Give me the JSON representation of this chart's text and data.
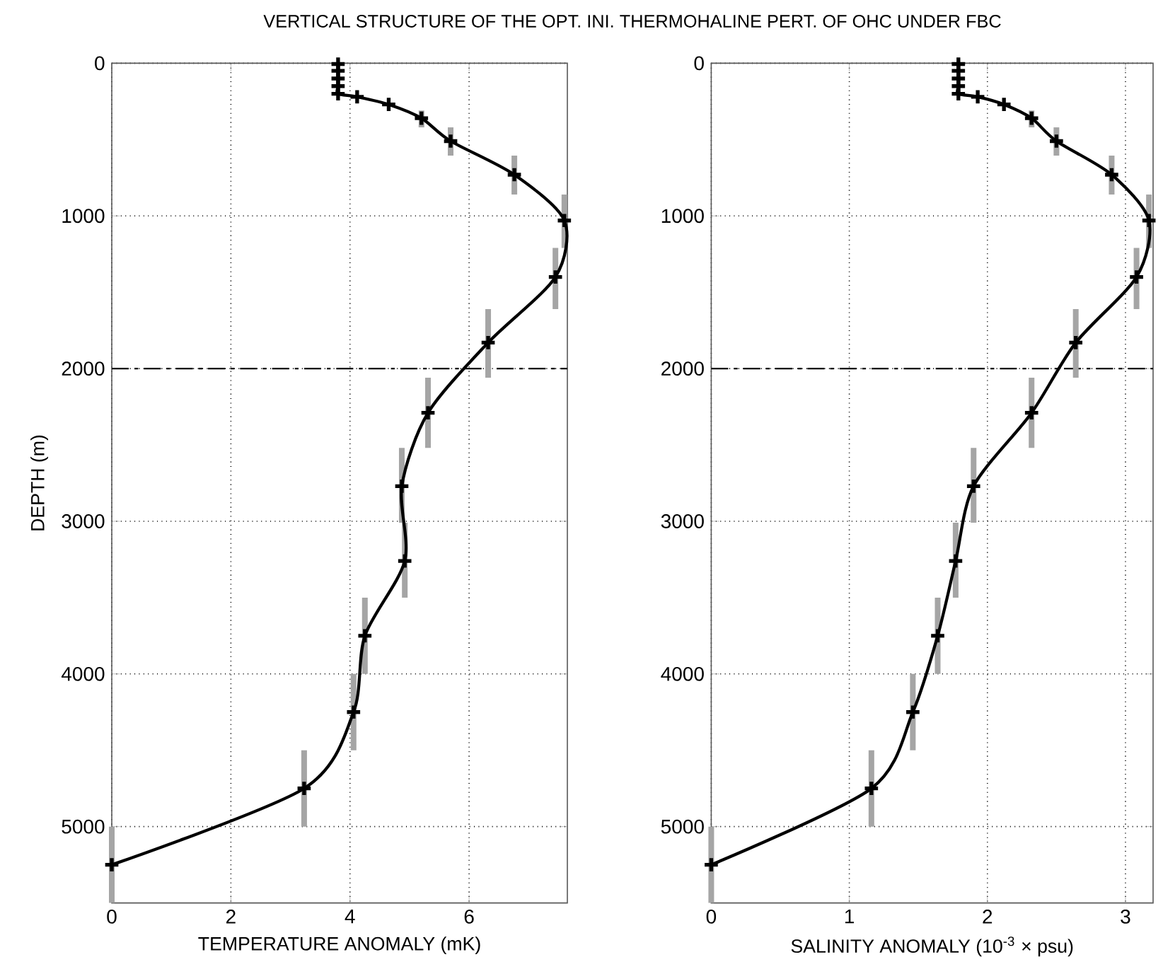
{
  "chart_data": [
    {
      "type": "line",
      "title": "VERTICAL STRUCTURE OF THE OPT. INI. THERMOHALINE PERT. OF OHC UNDER FBC",
      "xlabel": "TEMPERATURE ANOMALY (mK)",
      "ylabel": "DEPTH (m)",
      "xlim": [
        0,
        7.65
      ],
      "xticks": [
        0,
        2,
        4,
        6
      ],
      "ylim": [
        5500,
        0
      ],
      "yticks": [
        0,
        1000,
        2000,
        3000,
        4000,
        5000
      ],
      "grid": true,
      "marker": "cross",
      "line_style": "solid",
      "ref_lines": [
        {
          "axis": "y",
          "value": 2000,
          "line_style": "dashed",
          "color": "#000000"
        }
      ],
      "series": [
        {
          "color": "#000000",
          "x": [
            3.8,
            3.8,
            3.8,
            3.8,
            3.8,
            4.12,
            4.65,
            5.2,
            5.69,
            6.76,
            7.6,
            7.45,
            6.32,
            5.31,
            4.87,
            4.92,
            4.25,
            4.06,
            3.23,
            0
          ],
          "values": [
            5,
            50,
            100,
            150,
            200,
            220,
            270,
            360,
            510,
            730,
            1030,
            1400,
            1830,
            2290,
            2770,
            3260,
            3750,
            4250,
            4750,
            5250
          ],
          "errors": [
            null,
            null,
            null,
            null,
            null,
            null,
            null,
            [
              310,
              420
            ],
            [
              420,
              605
            ],
            [
              605,
              860
            ],
            [
              860,
              1210
            ],
            [
              1210,
              1610
            ],
            [
              1610,
              2060
            ],
            [
              2060,
              2520
            ],
            [
              2520,
              3010
            ],
            [
              3010,
              3500
            ],
            [
              3500,
              4000
            ],
            [
              4000,
              4500
            ],
            [
              4500,
              5000
            ],
            [
              5000,
              5500
            ]
          ]
        }
      ]
    },
    {
      "type": "line",
      "xlabel": "SALINITY ANOMALY (10$^{-3}$ × psu)",
      "xlim": [
        0,
        3.2
      ],
      "xticks": [
        0,
        1,
        2,
        3
      ],
      "ylim": [
        5500,
        0
      ],
      "yticks": [
        0,
        1000,
        2000,
        3000,
        4000,
        5000
      ],
      "grid": true,
      "marker": "cross",
      "line_style": "solid",
      "ref_lines": [
        {
          "axis": "y",
          "value": 2000,
          "line_style": "dashed",
          "color": "#000000"
        }
      ],
      "series": [
        {
          "color": "#000000",
          "x": [
            1.79,
            1.79,
            1.79,
            1.79,
            1.79,
            1.93,
            2.12,
            2.32,
            2.5,
            2.9,
            3.17,
            3.08,
            2.64,
            2.32,
            1.9,
            1.77,
            1.64,
            1.46,
            1.16,
            0
          ],
          "values": [
            5,
            50,
            100,
            150,
            200,
            220,
            270,
            360,
            510,
            730,
            1030,
            1400,
            1830,
            2290,
            2770,
            3260,
            3750,
            4250,
            4750,
            5250
          ],
          "errors": [
            null,
            null,
            null,
            null,
            null,
            null,
            null,
            [
              310,
              420
            ],
            [
              420,
              605
            ],
            [
              605,
              860
            ],
            [
              860,
              1210
            ],
            [
              1210,
              1610
            ],
            [
              1610,
              2060
            ],
            [
              2060,
              2520
            ],
            [
              2520,
              3010
            ],
            [
              3010,
              3500
            ],
            [
              3500,
              4000
            ],
            [
              4000,
              4500
            ],
            [
              4500,
              5000
            ],
            [
              5000,
              5500
            ]
          ]
        }
      ]
    }
  ]
}
